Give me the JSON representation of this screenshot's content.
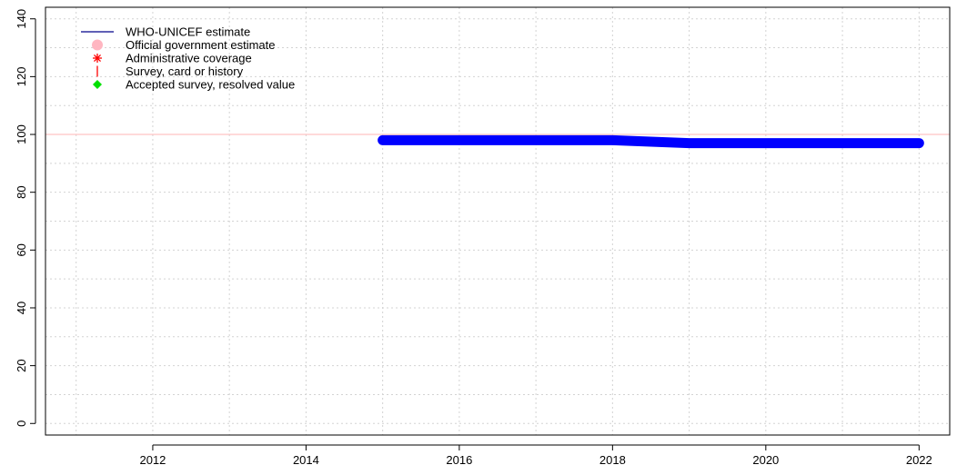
{
  "chart_data": {
    "type": "line",
    "title": "",
    "xlabel": "",
    "ylabel": "",
    "xlim": [
      2010.6,
      2022.4
    ],
    "ylim": [
      -4,
      144
    ],
    "x_ticks": [
      2012,
      2014,
      2016,
      2018,
      2020,
      2022
    ],
    "x_tick_labels": [
      "2012",
      "2014",
      "2016",
      "2018",
      "2020",
      "2022"
    ],
    "y_ticks": [
      0,
      20,
      40,
      60,
      80,
      100,
      120,
      140
    ],
    "y_tick_labels": [
      "0",
      "20",
      "40",
      "60",
      "80",
      "100",
      "120",
      "140"
    ],
    "x_grid": [
      2011,
      2012,
      2013,
      2014,
      2015,
      2016,
      2017,
      2018,
      2019,
      2020,
      2021,
      2022
    ],
    "y_grid": [
      0,
      10,
      20,
      30,
      40,
      50,
      60,
      70,
      80,
      90,
      100,
      110,
      120,
      130,
      140
    ],
    "grid": true,
    "reference_line": {
      "y": 100,
      "color": "#ffb6b6"
    },
    "legend": {
      "placement": "top-left",
      "entries": [
        {
          "label": "WHO-UNICEF estimate",
          "symbol": "line",
          "color": "#00008b"
        },
        {
          "label": "Official government estimate",
          "symbol": "circle",
          "color": "#ffb6c1"
        },
        {
          "label": "Administrative coverage",
          "symbol": "asterisk",
          "color": "#ff0000"
        },
        {
          "label": "Survey, card or history",
          "symbol": "vbar",
          "color": "#ff0000"
        },
        {
          "label": "Accepted survey, resolved value",
          "symbol": "diamond",
          "color": "#00e000"
        }
      ]
    },
    "series": [
      {
        "name": "WHO-UNICEF estimate",
        "color": "#0000ff",
        "x": [
          2015,
          2016,
          2017,
          2018,
          2019,
          2020,
          2021,
          2022
        ],
        "y": [
          98,
          98,
          98,
          98,
          97,
          97,
          97,
          97
        ]
      }
    ]
  }
}
